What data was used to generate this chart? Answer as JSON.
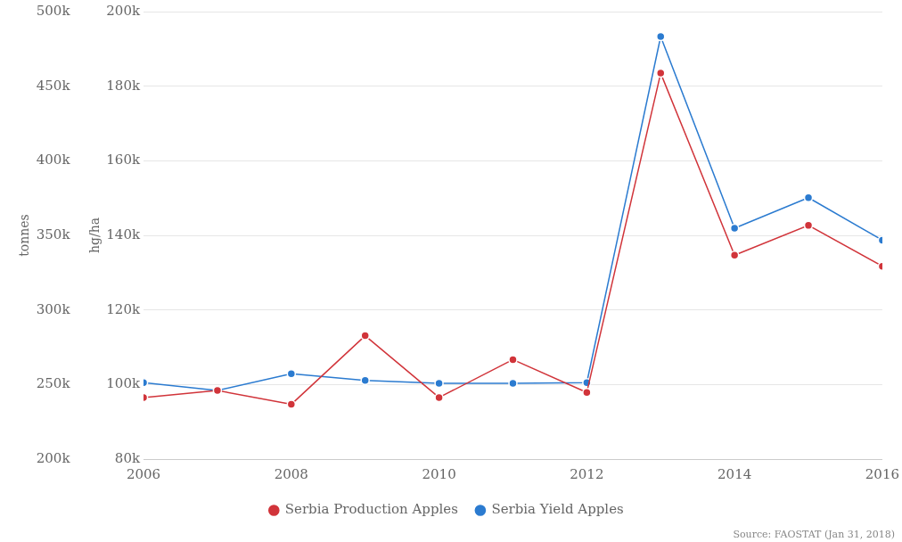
{
  "chart_data": {
    "type": "line",
    "xlabel": null,
    "ylabel": "tonnes",
    "y2label": "hg/ha",
    "x": [
      2006,
      2007,
      2008,
      2009,
      2010,
      2011,
      2012,
      2013,
      2014,
      2015,
      2016
    ],
    "xlim": [
      2006,
      2016
    ],
    "xticks": [
      2006,
      2008,
      2010,
      2012,
      2014,
      2016
    ],
    "ylim": [
      200000,
      500000
    ],
    "yticks": [
      {
        "value": 200000,
        "label": "200k"
      },
      {
        "value": 250000,
        "label": "250k"
      },
      {
        "value": 300000,
        "label": "300k"
      },
      {
        "value": 350000,
        "label": "350k"
      },
      {
        "value": 400000,
        "label": "400k"
      },
      {
        "value": 450000,
        "label": "450k"
      },
      {
        "value": 500000,
        "label": "500k"
      }
    ],
    "y2lim": [
      80000,
      200000
    ],
    "y2ticks": [
      {
        "value": 80000,
        "label": "80k"
      },
      {
        "value": 100000,
        "label": "100k"
      },
      {
        "value": 120000,
        "label": "120k"
      },
      {
        "value": 140000,
        "label": "140k"
      },
      {
        "value": 160000,
        "label": "160k"
      },
      {
        "value": 180000,
        "label": "180k"
      },
      {
        "value": 200000,
        "label": "200k"
      }
    ],
    "series": [
      {
        "name": "Serbia Yield Apples",
        "color": "#2b7bd0",
        "axis": "y2",
        "values": [
          100500,
          98400,
          102900,
          101100,
          100300,
          100300,
          100500,
          193300,
          141900,
          150100,
          138700
        ]
      },
      {
        "name": "Serbia Production Apples",
        "color": "#d1343a",
        "axis": "y",
        "values": [
          241300,
          246000,
          236700,
          282700,
          241300,
          266700,
          244700,
          458700,
          336700,
          356700,
          329300
        ]
      }
    ],
    "grid": "y",
    "legend": "bottom",
    "marker": "circle",
    "line_style": "solid",
    "annotations": [
      "Source: FAOSTAT (Jan 31, 2018)"
    ]
  }
}
